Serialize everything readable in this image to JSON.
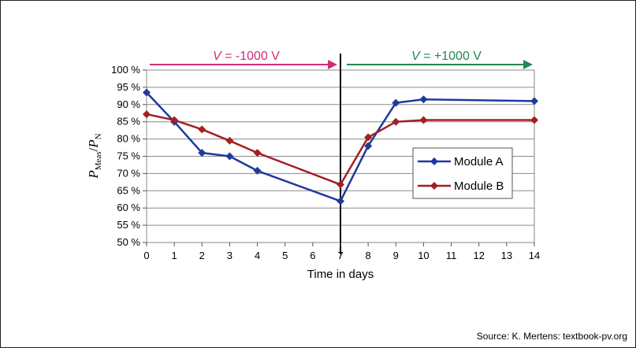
{
  "chart_data": {
    "type": "line",
    "xlabel": "Time in days",
    "ylabel": {
      "main": "P",
      "sub1": "Meas",
      "slash": "/",
      "main2": "P",
      "sub2": "N"
    },
    "xlim": [
      0,
      14
    ],
    "ylim": [
      50,
      100
    ],
    "xticks": [
      "0",
      "1",
      "2",
      "3",
      "4",
      "5",
      "6",
      "7",
      "7",
      "8",
      "9",
      "10",
      "11",
      "12",
      "13",
      "14"
    ],
    "yticks": [
      "50 %",
      "55 %",
      "60 %",
      "65 %",
      "70 %",
      "75 %",
      "80 %",
      "85 %",
      "90 %",
      "95 %",
      "100 %"
    ],
    "series": [
      {
        "name": "Module A",
        "color": "#1f3a9c",
        "points": [
          [
            0,
            93.5
          ],
          [
            1,
            85
          ],
          [
            2,
            76
          ],
          [
            3,
            75
          ],
          [
            4,
            70.8
          ],
          [
            7,
            62
          ],
          [
            8,
            78
          ],
          [
            9,
            90.5
          ],
          [
            10,
            91.5
          ],
          [
            14,
            91
          ]
        ]
      },
      {
        "name": "Module B",
        "color": "#a31f22",
        "points": [
          [
            0,
            87.2
          ],
          [
            1,
            85.5
          ],
          [
            2,
            82.8
          ],
          [
            3,
            79.5
          ],
          [
            4,
            76
          ],
          [
            7,
            66.8
          ],
          [
            8,
            80.5
          ],
          [
            9,
            85
          ],
          [
            10,
            85.5
          ],
          [
            14,
            85.5
          ]
        ]
      }
    ],
    "annotations": [
      {
        "text_italic": "V",
        "text": " = -1000 V",
        "color": "#d02d7a"
      },
      {
        "text_italic": "V",
        "text": " = +1000 V",
        "color": "#1e8a55"
      }
    ],
    "grid": true,
    "legend": "right"
  },
  "source": "Source: K. Mertens: textbook-pv.org"
}
